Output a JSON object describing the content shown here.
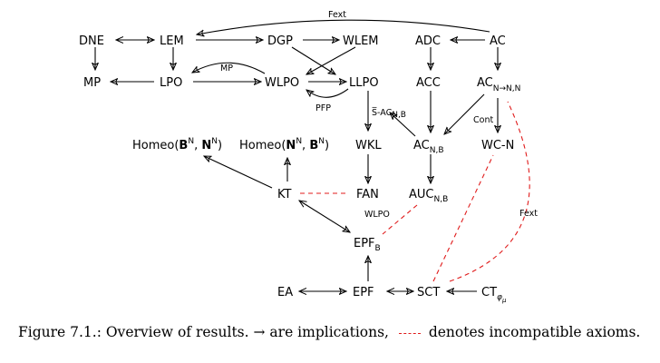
{
  "nodes": {
    "dne": "DNE",
    "lem": "LEM",
    "dgp": "DGP",
    "wlem": "WLEM",
    "adc": "ADC",
    "ac": "AC",
    "mp": "MP",
    "lpo": "LPO",
    "wlpo": "WLPO",
    "llpo": "LLPO",
    "acc": "ACC",
    "ac_nnn": {
      "base": "AC",
      "sub": "N→N,N"
    },
    "homeo1": {
      "pre": "Homeo(",
      "a": "B",
      "a_sup": "N",
      "mid": ", ",
      "b": "N",
      "b_sup": "N",
      "post": ")"
    },
    "homeo2": {
      "pre": "Homeo(",
      "a": "N",
      "a_sup": "N",
      "mid": ", ",
      "b": "B",
      "b_sup": "N",
      "post": ")"
    },
    "wkl": "WKL",
    "ac_nb": {
      "base": "AC",
      "sub": "N,B"
    },
    "wcn": "WC-N",
    "kt": "KT",
    "fan": "FAN",
    "auc_nb": {
      "base": "AUC",
      "sub": "N,B"
    },
    "epf_b": {
      "base": "EPF",
      "sub": "B"
    },
    "ea": "EA",
    "epf": "EPF",
    "sct": "SCT",
    "ct": {
      "base": "CT",
      "sub": "φ",
      "subsub": "μ"
    }
  },
  "edge_labels": {
    "fext_top": "Fext",
    "mp": "MP",
    "pfp": "PFP",
    "s_ac": {
      "base": "S̅-AC",
      "sub": "N,B"
    },
    "cont": "Cont",
    "wlpo": "WLPO",
    "fext_right": "Fext"
  },
  "caption": {
    "prefix": "Figure 7.1.: Overview of results. ",
    "arrow": "→",
    "middle": " are implications, ",
    "suffix": " denotes incompatible axioms."
  },
  "colors": {
    "incompatible": "#e01b1b",
    "implication": "#000000"
  }
}
